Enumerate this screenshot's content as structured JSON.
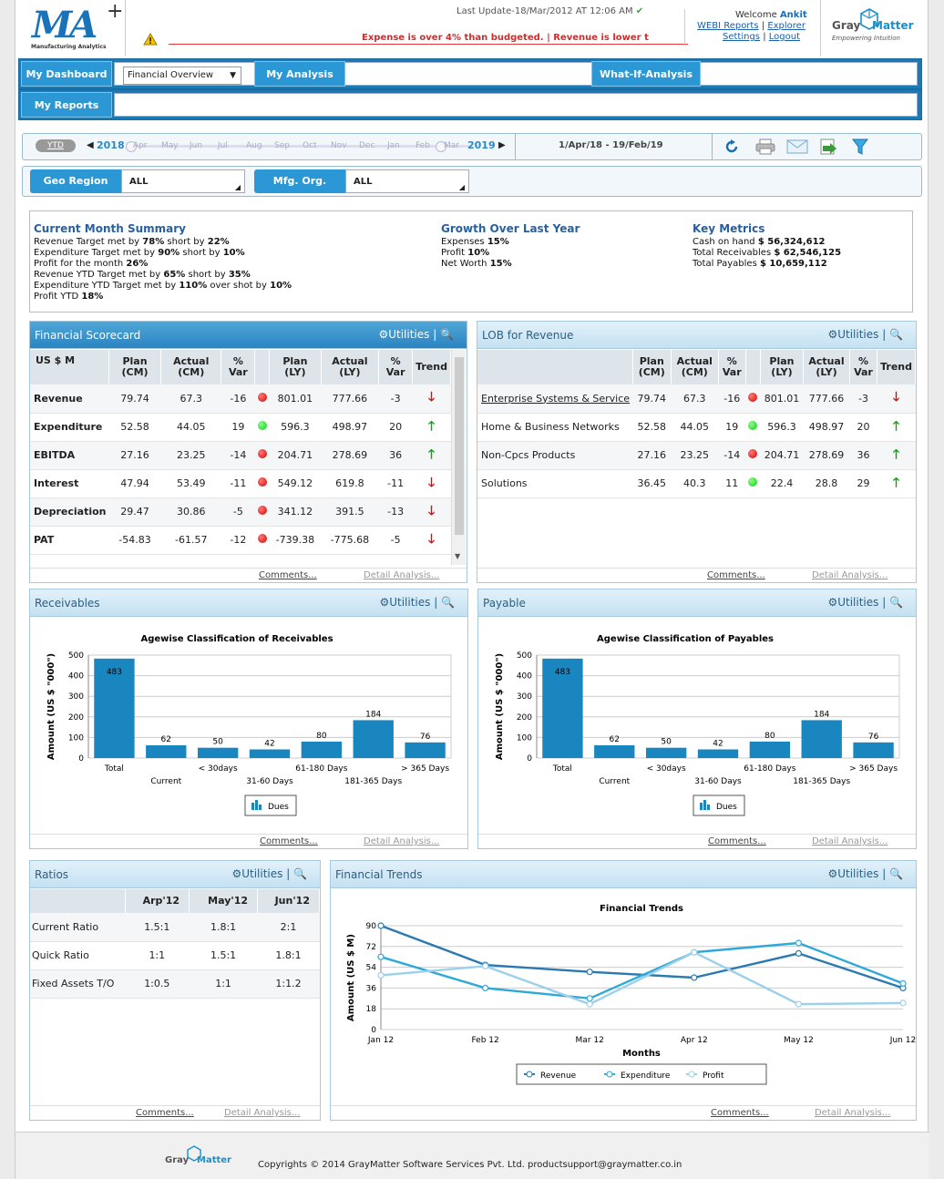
{
  "header": {
    "logo_text": "MA",
    "logo_sub": "Manufacturing Analytics",
    "last_update": "Last Update-18/Mar/2012 AT 12:06 AM",
    "ticker": "Expense is over 4% than budgeted.    |    Revenue is lower t",
    "welcome_prefix": "Welcome",
    "user": "Ankit",
    "links": [
      "WEBI Reports",
      "Explorer",
      "Settings",
      "Logout"
    ],
    "brand_gray": "Gray",
    "brand_matter": "Matter",
    "brand_tag": "Empowering Intuition"
  },
  "nav": {
    "my_dashboard": "My Dashboard",
    "dashboard_select": "Financial Overview",
    "my_analysis": "My Analysis",
    "what_if": "What-If-Analysis",
    "my_reports": "My Reports"
  },
  "toolbar": {
    "ytd": "YTD",
    "year_start": "2018",
    "months": [
      "Apr",
      "May",
      "Jun",
      "Jul",
      "Aug",
      "Sep",
      "Oct",
      "Nov",
      "Dec",
      "Jan",
      "Feb",
      "Mar"
    ],
    "year_end": "2019",
    "date_range": "1/Apr/18 - 19/Feb/19"
  },
  "filters": {
    "geo_label": "Geo Region",
    "geo_value": "ALL",
    "mfg_label": "Mfg. Org.",
    "mfg_value": "ALL"
  },
  "summary": {
    "current_title": "Current Month Summary",
    "current_lines": [
      [
        "Revenue Target met by ",
        "78%",
        " short by ",
        "22%",
        ""
      ],
      [
        "Expenditure Target met by ",
        "90%",
        " short by ",
        "10%",
        ""
      ],
      [
        "Profit for the month ",
        "26%",
        "",
        "",
        ""
      ],
      [
        "Revenue YTD Target met by ",
        "65%",
        " short by ",
        "35%",
        ""
      ],
      [
        "Expenditure YTD Target met by ",
        "110%",
        " over shot by ",
        "10%",
        ""
      ],
      [
        "Profit YTD ",
        "18%",
        "",
        "",
        ""
      ]
    ],
    "growth_title": "Growth Over Last Year",
    "growth_lines": [
      [
        "Expenses ",
        "15%"
      ],
      [
        "Profit ",
        "10%"
      ],
      [
        "Net Worth ",
        "15%"
      ]
    ],
    "key_title": "Key Metrics",
    "key_lines": [
      [
        "Cash on hand ",
        "$ 56,324,612"
      ],
      [
        "Total Receivables ",
        "$ 62,546,125"
      ],
      [
        "Total Payables ",
        "$ 10,659,112"
      ]
    ]
  },
  "common": {
    "utilities": "Utilities",
    "comments": "Comments...",
    "detail": "Detail Analysis..."
  },
  "scorecard": {
    "title": "Financial Scorecard",
    "headers": [
      "US $ M",
      "Plan (CM)",
      "Actual (CM)",
      "% Var",
      "",
      "Plan (LY)",
      "Actual (LY)",
      "% Var",
      "Trend"
    ],
    "rows": [
      {
        "name": "Revenue",
        "plan_cm": "79.74",
        "act_cm": "67.3",
        "var_cm": "-16",
        "status": "red",
        "plan_ly": "801.01",
        "act_ly": "777.66",
        "var_ly": "-3",
        "trend": "down"
      },
      {
        "name": "Expenditure",
        "plan_cm": "52.58",
        "act_cm": "44.05",
        "var_cm": "19",
        "status": "green",
        "plan_ly": "596.3",
        "act_ly": "498.97",
        "var_ly": "20",
        "trend": "up"
      },
      {
        "name": "EBITDA",
        "plan_cm": "27.16",
        "act_cm": "23.25",
        "var_cm": "-14",
        "status": "red",
        "plan_ly": "204.71",
        "act_ly": "278.69",
        "var_ly": "36",
        "trend": "up"
      },
      {
        "name": "Interest",
        "plan_cm": "47.94",
        "act_cm": "53.49",
        "var_cm": "-11",
        "status": "red",
        "plan_ly": "549.12",
        "act_ly": "619.8",
        "var_ly": "-11",
        "trend": "down"
      },
      {
        "name": "Depreciation",
        "plan_cm": "29.47",
        "act_cm": "30.86",
        "var_cm": "-5",
        "status": "red",
        "plan_ly": "341.12",
        "act_ly": "391.5",
        "var_ly": "-13",
        "trend": "down"
      },
      {
        "name": "PAT",
        "plan_cm": "-54.83",
        "act_cm": "-61.57",
        "var_cm": "-12",
        "status": "red",
        "plan_ly": "-739.38",
        "act_ly": "-775.68",
        "var_ly": "-5",
        "trend": "down"
      }
    ]
  },
  "lob": {
    "title": "LOB for Revenue",
    "headers": [
      "",
      "Plan (CM)",
      "Actual (CM)",
      "% Var",
      "",
      "Plan (LY)",
      "Actual (LY)",
      "% Var",
      "Trend"
    ],
    "rows": [
      {
        "name": "Enterprise Systems & Service",
        "plan_cm": "79.74",
        "act_cm": "67.3",
        "var_cm": "-16",
        "status": "red",
        "plan_ly": "801.01",
        "act_ly": "777.66",
        "var_ly": "-3",
        "trend": "down"
      },
      {
        "name": "Home & Business Networks",
        "plan_cm": "52.58",
        "act_cm": "44.05",
        "var_cm": "19",
        "status": "green",
        "plan_ly": "596.3",
        "act_ly": "498.97",
        "var_ly": "20",
        "trend": "up"
      },
      {
        "name": "Non-Cpcs Products",
        "plan_cm": "27.16",
        "act_cm": "23.25",
        "var_cm": "-14",
        "status": "red",
        "plan_ly": "204.71",
        "act_ly": "278.69",
        "var_ly": "36",
        "trend": "up"
      },
      {
        "name": "Solutions",
        "plan_cm": "36.45",
        "act_cm": "40.3",
        "var_cm": "11",
        "status": "green",
        "plan_ly": "22.4",
        "act_ly": "28.8",
        "var_ly": "29",
        "trend": "up"
      }
    ]
  },
  "receivables": {
    "title": "Receivables"
  },
  "payable": {
    "title": "Payable"
  },
  "ratios": {
    "title": "Ratios",
    "headers": [
      "",
      "Arp'12",
      "May'12",
      "Jun'12"
    ],
    "rows": [
      [
        "Current Ratio",
        "1.5:1",
        "1.8:1",
        "2:1"
      ],
      [
        "Quick Ratio",
        "1:1",
        "1.5:1",
        "1.8:1"
      ],
      [
        "Fixed Assets T/O",
        "1:0.5",
        "1:1",
        "1:1.2"
      ]
    ]
  },
  "trends": {
    "title": "Financial Trends"
  },
  "footer": {
    "copyright": "Copyrights © 2014 GrayMatter Software Services Pvt. Ltd. productsupport@graymatter.co.in"
  },
  "chart_data": [
    {
      "type": "bar",
      "title": "Agewise Classification of Receivables",
      "ylabel": "Amount (US $ \"000\")",
      "ylim": [
        0,
        500
      ],
      "yticks": [
        0,
        100,
        200,
        300,
        400,
        500
      ],
      "categories": [
        "Total",
        "Current",
        "< 30days",
        "31-60 Days",
        "61-180 Days",
        "181-365 Days",
        "> 365 Days"
      ],
      "series": [
        {
          "name": "Dues",
          "values": [
            483,
            62,
            50,
            42,
            80,
            184,
            76
          ]
        }
      ],
      "legend": "bottom",
      "grid": true,
      "color": "#1a86c0"
    },
    {
      "type": "bar",
      "title": "Agewise Classification of Payables",
      "ylabel": "Amount (US $ \"000\")",
      "ylim": [
        0,
        500
      ],
      "yticks": [
        0,
        100,
        200,
        300,
        400,
        500
      ],
      "categories": [
        "Total",
        "Current",
        "< 30days",
        "31-60 Days",
        "61-180 Days",
        "181-365 Days",
        "> 365 Days"
      ],
      "series": [
        {
          "name": "Dues",
          "values": [
            483,
            62,
            50,
            42,
            80,
            184,
            76
          ]
        }
      ],
      "legend": "bottom",
      "grid": true,
      "color": "#1a86c0"
    },
    {
      "type": "line",
      "title": "Financial Trends",
      "xlabel": "Months",
      "ylabel": "Amount (US $ M)",
      "ylim": [
        0,
        90
      ],
      "yticks": [
        0,
        18,
        36,
        54,
        72,
        90
      ],
      "x": [
        "Jan 12",
        "Feb 12",
        "Mar 12",
        "Apr 12",
        "May 12",
        "Jun 12"
      ],
      "series": [
        {
          "name": "Revenue",
          "values": [
            90,
            56,
            50,
            45,
            66,
            36
          ],
          "color": "#2a7ab0"
        },
        {
          "name": "Expenditure",
          "values": [
            63,
            36,
            27,
            67,
            75,
            40
          ],
          "color": "#2ea8d8"
        },
        {
          "name": "Profit",
          "values": [
            47,
            55,
            22,
            67,
            22,
            23
          ],
          "color": "#9dd0ea"
        }
      ],
      "legend": "bottom",
      "grid": true
    }
  ]
}
